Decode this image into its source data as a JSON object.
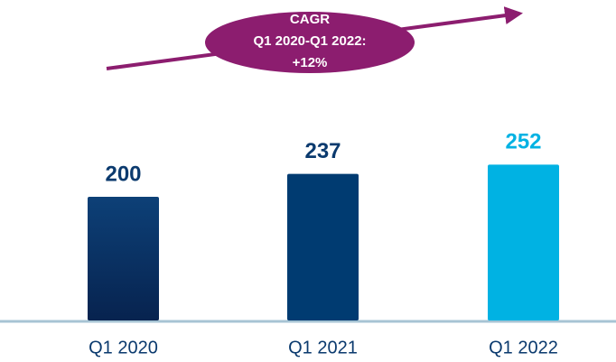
{
  "chart_data": {
    "type": "bar",
    "categories": [
      "Q1 2020",
      "Q1 2021",
      "Q1 2022"
    ],
    "values": [
      200,
      237,
      252
    ],
    "colors": [
      "#07234f",
      "#003b71",
      "#00b2e3"
    ],
    "label_colors": [
      "#0b3a6e",
      "#0b3a6e",
      "#00b2e3"
    ],
    "annotation": {
      "lines": [
        "CAGR",
        "Q1 2020-Q1 2022:",
        "+12%"
      ],
      "color": "#8c1d6f"
    }
  }
}
